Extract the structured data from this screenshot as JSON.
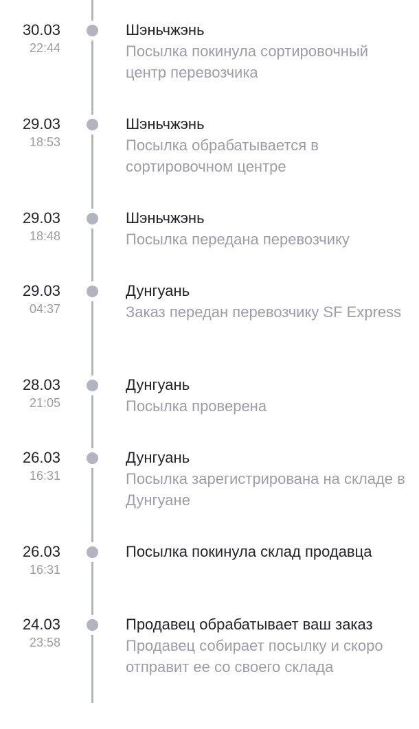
{
  "colors": {
    "rail": "#b3b3c1",
    "text": "#23232b",
    "muted": "#9c9caa"
  },
  "events": [
    {
      "date": "30.03",
      "time": "22:44",
      "title": "Шэньчжэнь",
      "desc": "Посылка покинула сортировочный центр перевозчика"
    },
    {
      "date": "29.03",
      "time": "18:53",
      "title": "Шэньчжэнь",
      "desc": "Посылка обрабатывается в сортировочном центре"
    },
    {
      "date": "29.03",
      "time": "18:48",
      "title": "Шэньчжэнь",
      "desc": "Посылка передана перевозчику"
    },
    {
      "date": "29.03",
      "time": "04:37",
      "title": "Дунгуань",
      "desc": "Заказ передан перевозчику SF Express"
    },
    {
      "date": "28.03",
      "time": "21:05",
      "title": "Дунгуань",
      "desc": "Посылка проверена"
    },
    {
      "date": "26.03",
      "time": "16:31",
      "title": "Дунгуань",
      "desc": "Посылка зарегистрирована на складе в Дунгуане"
    },
    {
      "date": "26.03",
      "time": "16:31",
      "title": "Посылка покинула склад продавца",
      "desc": ""
    },
    {
      "date": "24.03",
      "time": "23:58",
      "title": "Продавец обрабатывает ваш заказ",
      "desc": "Продавец собирает посылку и скоро отправит ее со своего склада"
    }
  ]
}
